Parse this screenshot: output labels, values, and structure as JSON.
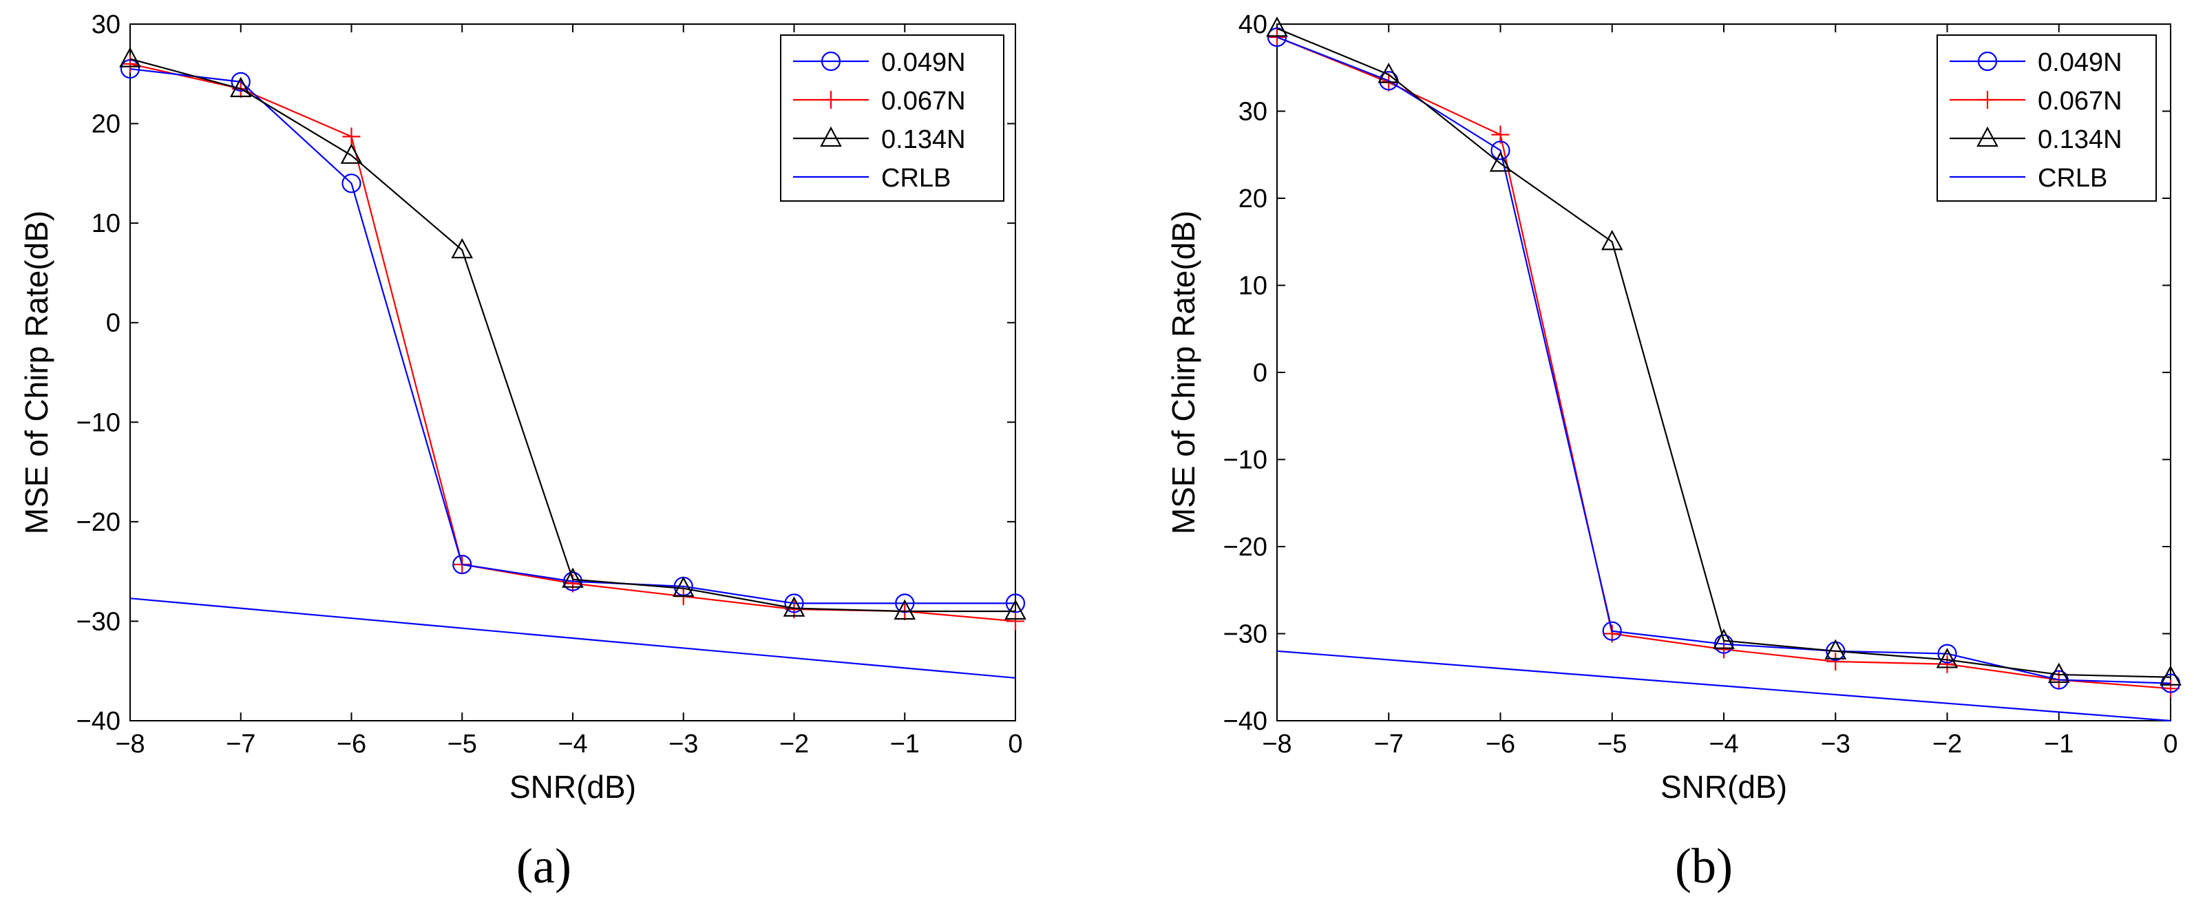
{
  "chart_data": [
    {
      "type": "line",
      "caption": "(a)",
      "xlabel": "SNR(dB)",
      "ylabel": "MSE of Chirp Rate(dB)",
      "xlim": [
        -8,
        0
      ],
      "ylim": [
        -40,
        30
      ],
      "xticks": [
        -8,
        -7,
        -6,
        -5,
        -4,
        -3,
        -2,
        -1,
        0
      ],
      "yticks": [
        -40,
        -30,
        -20,
        -10,
        0,
        10,
        20,
        30
      ],
      "x": [
        -8,
        -7,
        -6,
        -5,
        -4,
        -3,
        -2,
        -1,
        0
      ],
      "legend_position": "top-right",
      "series": [
        {
          "name": "0.049N",
          "color": "#0000ff",
          "marker": "circle",
          "values": [
            25.5,
            24.2,
            14.0,
            -24.3,
            -26.0,
            -26.5,
            -28.2,
            -28.2,
            -28.2
          ]
        },
        {
          "name": "0.067N",
          "color": "#ff0000",
          "marker": "plus",
          "values": [
            26.0,
            23.5,
            18.7,
            -24.3,
            -26.2,
            -27.5,
            -28.8,
            -29.0,
            -30.0
          ]
        },
        {
          "name": "0.134N",
          "color": "#000000",
          "marker": "triangle",
          "values": [
            26.5,
            23.5,
            16.8,
            7.3,
            -25.8,
            -26.7,
            -28.7,
            -29.0,
            -29.0
          ]
        },
        {
          "name": "CRLB",
          "color": "#0000ff",
          "marker": "none",
          "values": [
            -27.7,
            -28.7,
            -29.7,
            -30.7,
            -31.7,
            -32.7,
            -33.7,
            -34.7,
            -35.7
          ]
        }
      ]
    },
    {
      "type": "line",
      "caption": "(b)",
      "xlabel": "SNR(dB)",
      "ylabel": "MSE of Chirp Rate(dB)",
      "xlim": [
        -8,
        0
      ],
      "ylim": [
        -40,
        40
      ],
      "xticks": [
        -8,
        -7,
        -6,
        -5,
        -4,
        -3,
        -2,
        -1,
        0
      ],
      "yticks": [
        -40,
        -30,
        -20,
        -10,
        0,
        10,
        20,
        30,
        40
      ],
      "x": [
        -8,
        -7,
        -6,
        -5,
        -4,
        -3,
        -2,
        -1,
        0
      ],
      "legend_position": "top-right",
      "series": [
        {
          "name": "0.049N",
          "color": "#0000ff",
          "marker": "circle",
          "values": [
            38.5,
            33.5,
            25.5,
            -29.7,
            -31.2,
            -32.0,
            -32.3,
            -35.3,
            -35.7
          ]
        },
        {
          "name": "0.067N",
          "color": "#ff0000",
          "marker": "plus",
          "values": [
            38.5,
            33.3,
            27.3,
            -30.0,
            -31.8,
            -33.2,
            -33.5,
            -35.3,
            -36.3
          ]
        },
        {
          "name": "0.134N",
          "color": "#000000",
          "marker": "triangle",
          "values": [
            39.5,
            34.2,
            24.0,
            15.0,
            -30.8,
            -32.0,
            -33.0,
            -34.7,
            -35.0
          ]
        },
        {
          "name": "CRLB",
          "color": "#0000ff",
          "marker": "none",
          "values": [
            -32.0,
            -33.0,
            -34.0,
            -35.0,
            -36.0,
            -37.0,
            -38.0,
            -39.0,
            -40.0
          ]
        }
      ]
    }
  ]
}
